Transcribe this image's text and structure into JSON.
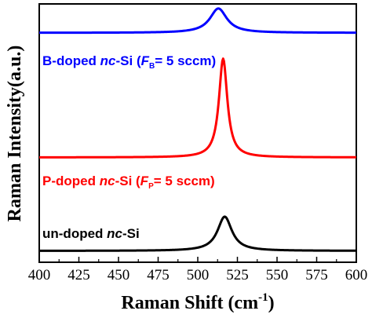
{
  "chart_data": {
    "type": "line",
    "xlabel": "Raman Shift (cm",
    "xlabel_sup": "-1",
    "xlabel_tail": ")",
    "ylabel": "Raman Intensity(a.u.)",
    "xlim": [
      400,
      600
    ],
    "ylim": [
      0,
      3.4
    ],
    "x_ticks": [
      400,
      425,
      450,
      475,
      500,
      525,
      550,
      575,
      600
    ],
    "y_ticks_shown": false,
    "grid": false,
    "legend": "none (inline labels above each curve)",
    "series": [
      {
        "name": "un-doped nc-Si",
        "label_parts": [
          "un-doped ",
          "nc",
          "-Si",
          "",
          "",
          ""
        ],
        "color": "#000000",
        "baseline": 0.15,
        "peak_center": 517,
        "peak_height": 0.45,
        "peak_width": 5.5
      },
      {
        "name": "P-doped nc-Si (FP= 5 sccm)",
        "label_parts": [
          "P-doped ",
          "nc",
          "-Si (",
          "F",
          "P",
          "= 5 sccm)"
        ],
        "color": "#ff0000",
        "baseline": 1.38,
        "peak_center": 516,
        "peak_height": 1.3,
        "peak_width": 3.2
      },
      {
        "name": "B-doped nc-Si (FB= 5 sccm)",
        "label_parts": [
          "B-doped ",
          "nc",
          "-Si (",
          "F",
          "B",
          "= 5 sccm)"
        ],
        "color": "#0000ff",
        "baseline": 3.02,
        "peak_center": 513,
        "peak_height": 0.32,
        "peak_width": 6.5
      }
    ]
  }
}
